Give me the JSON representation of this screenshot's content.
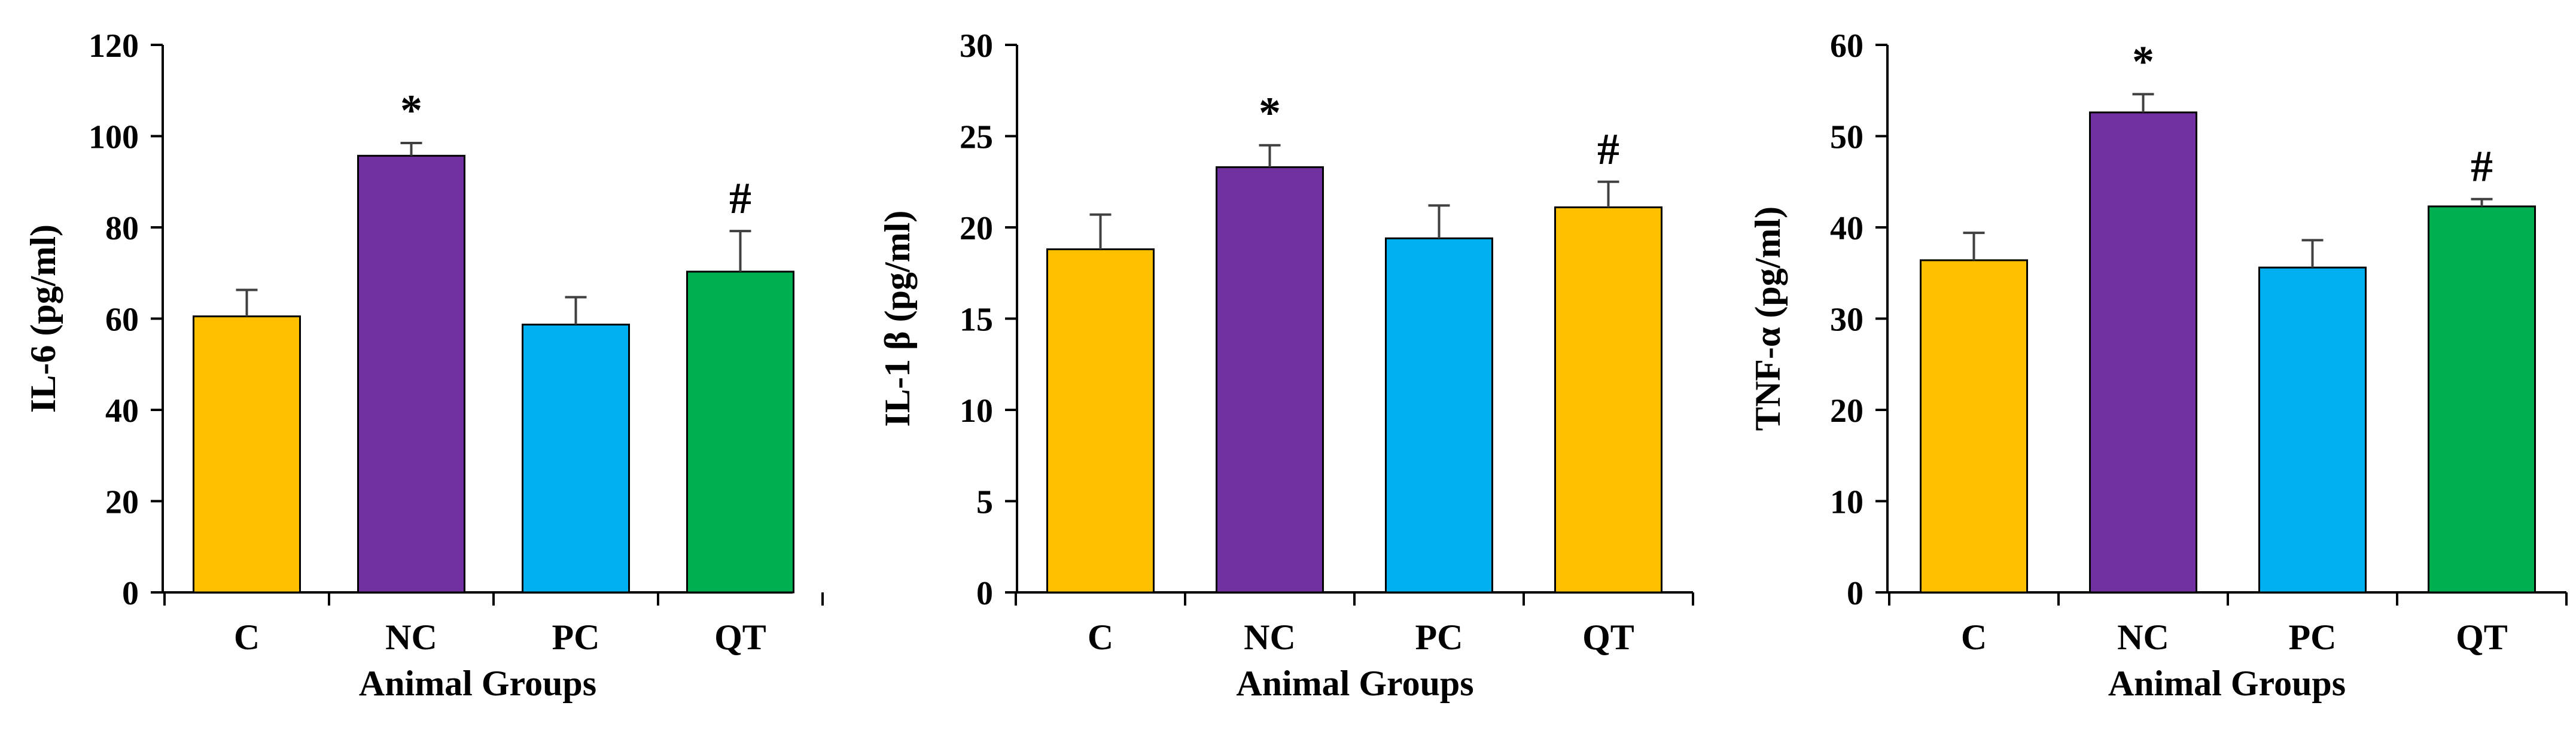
{
  "chart_data": [
    {
      "type": "bar",
      "categories": [
        "C",
        "NC",
        "PC",
        "QT"
      ],
      "values": [
        60.5,
        95.7,
        58.7,
        70.3
      ],
      "errors": [
        5.8,
        2.8,
        6.0,
        8.9
      ],
      "annotations": [
        "",
        "*",
        "",
        "#"
      ],
      "colors": [
        "#FFC000",
        "#7030A0",
        "#00B0F0",
        "#00B050"
      ],
      "ylabel": "IL-6 (pg/ml)",
      "xlabel": "Animal Groups",
      "ylim": [
        0,
        120
      ],
      "yticks": [
        0,
        20,
        40,
        60,
        80,
        100,
        120
      ],
      "grid": false,
      "legend": "none"
    },
    {
      "type": "bar",
      "categories": [
        "C",
        "NC",
        "PC",
        "QT"
      ],
      "values": [
        18.8,
        23.3,
        19.4,
        21.1
      ],
      "errors": [
        1.9,
        1.2,
        1.8,
        1.4
      ],
      "annotations": [
        "",
        "*",
        "",
        "#"
      ],
      "colors": [
        "#FFC000",
        "#7030A0",
        "#00B0F0",
        "#FFC000"
      ],
      "ylabel": "IL-1 β (pg/ml)",
      "xlabel": "Animal Groups",
      "ylim": [
        0,
        30
      ],
      "yticks": [
        0,
        5,
        10,
        15,
        20,
        25,
        30
      ],
      "grid": false,
      "legend": "none"
    },
    {
      "type": "bar",
      "categories": [
        "C",
        "NC",
        "PC",
        "QT"
      ],
      "values": [
        36.4,
        52.6,
        35.6,
        42.3
      ],
      "errors": [
        3.0,
        2.0,
        3.0,
        0.8
      ],
      "annotations": [
        "",
        "*",
        "",
        "#"
      ],
      "colors": [
        "#FFC000",
        "#7030A0",
        "#00B0F0",
        "#00B050"
      ],
      "ylabel": "TNF-α (pg/ml)",
      "xlabel": "Animal Groups",
      "ylim": [
        0,
        60
      ],
      "yticks": [
        0,
        10,
        20,
        30,
        40,
        50,
        60
      ],
      "grid": false,
      "legend": "none"
    }
  ]
}
